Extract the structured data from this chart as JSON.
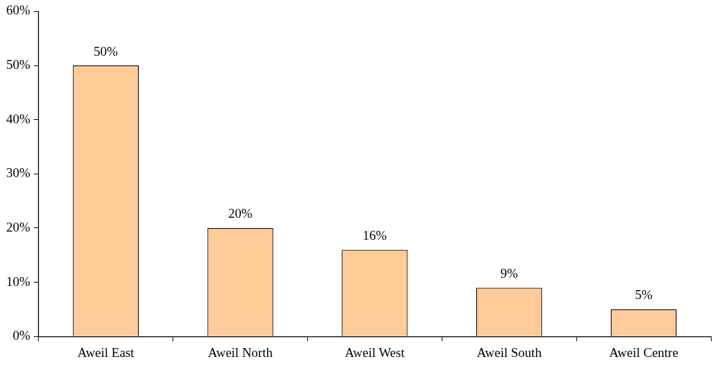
{
  "chart_data": {
    "type": "bar",
    "categories": [
      "Aweil East",
      "Aweil North",
      "Aweil West",
      "Aweil South",
      "Aweil Centre"
    ],
    "values": [
      50,
      20,
      16,
      9,
      5
    ],
    "value_labels": [
      "50%",
      "20%",
      "16%",
      "9%",
      "5%"
    ],
    "color": "#ffcc99",
    "ylim": [
      0,
      60
    ],
    "yticks": [
      {
        "value": 0,
        "label": "0%"
      },
      {
        "value": 10,
        "label": "10%"
      },
      {
        "value": 20,
        "label": "20%"
      },
      {
        "value": 30,
        "label": "30%"
      },
      {
        "value": 40,
        "label": "40%"
      },
      {
        "value": 50,
        "label": "50%"
      },
      {
        "value": 60,
        "label": "60%"
      }
    ],
    "grid": false,
    "legend": false
  }
}
